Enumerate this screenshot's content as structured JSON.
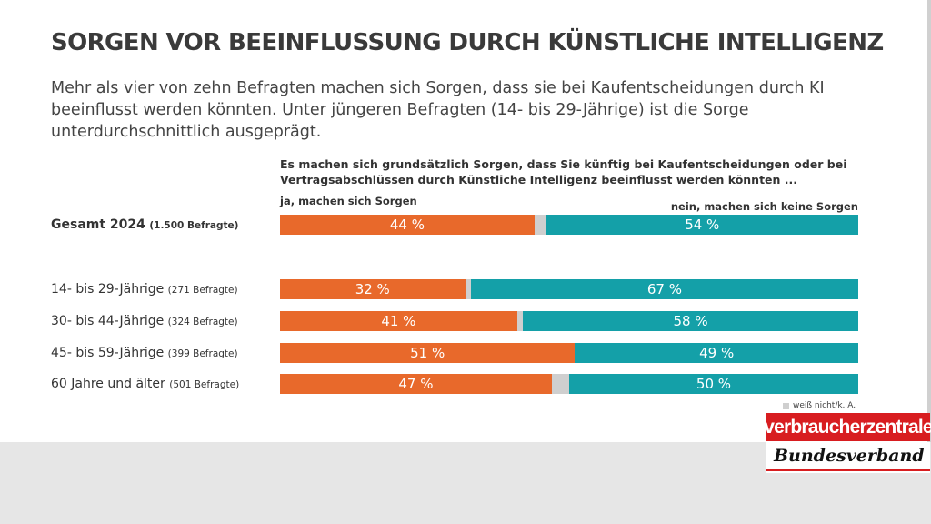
{
  "title": "SORGEN VOR BEEINFLUSSUNG DURCH KÜNSTLICHE INTELLIGENZ",
  "subtitle": "Mehr als vier von zehn Befragten machen sich Sorgen, dass sie bei Kaufentscheidungen durch KI beeinflusst werden könnten. Unter jüngeren Befragten (14- bis 29-Jährige) ist die Sorge unterdurchschnittlich ausgeprägt.",
  "logo": {
    "top": "verbraucherzentrale",
    "bottom": "Bundesverband"
  },
  "colors": {
    "yes": "#e8692b",
    "dont_know": "#cfcfcf",
    "no": "#14a0a8",
    "logo_red": "#d81d20"
  },
  "chart_data": {
    "type": "bar",
    "orientation": "horizontal-stacked-100",
    "title": "Es machen sich grundsätzlich Sorgen, dass Sie künftig bei Kaufentscheidungen oder bei Vertragsabschlüssen durch Künstliche Intelligenz beeinflusst werden könnten ...",
    "series_labels": {
      "yes": "ja, machen sich Sorgen",
      "no": "nein, machen sich keine Sorgen",
      "dont_know": "weiß nicht/k. A."
    },
    "unit": "%",
    "rows": [
      {
        "label": "Gesamt 2024",
        "n": "(1.500 Befragte)",
        "yes": 44,
        "no": 54,
        "yes_label": "44 %",
        "no_label": "54 %",
        "bold": true
      },
      {
        "label": "14- bis 29-Jährige",
        "n": "(271 Befragte)",
        "yes": 32,
        "no": 67,
        "yes_label": "32 %",
        "no_label": "67 %",
        "bold": false
      },
      {
        "label": "30- bis 44-Jährige",
        "n": "(324 Befragte)",
        "yes": 41,
        "no": 58,
        "yes_label": "41 %",
        "no_label": "58 %",
        "bold": false
      },
      {
        "label": "45- bis 59-Jährige",
        "n": "(399 Befragte)",
        "yes": 51,
        "no": 49,
        "yes_label": "51 %",
        "no_label": "49 %",
        "bold": false
      },
      {
        "label": "60 Jahre und älter",
        "n": "(501 Befragte)",
        "yes": 47,
        "no": 50,
        "yes_label": "47 %",
        "no_label": "50 %",
        "bold": false
      }
    ]
  }
}
